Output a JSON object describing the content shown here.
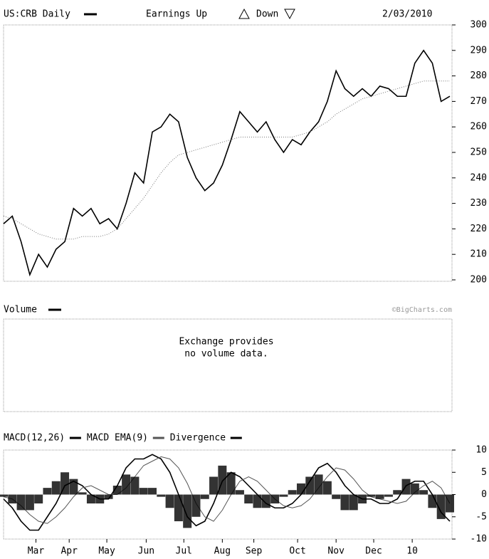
{
  "header": {
    "title": "US:CRB Daily",
    "earnings_up": "Earnings Up",
    "earnings_down": "Down",
    "date": "2/03/2010"
  },
  "volume_panel": {
    "title": "Volume",
    "watermark": "©BigCharts.com",
    "message": [
      "Exchange provides",
      "no volume data."
    ]
  },
  "chart_data": [
    {
      "type": "line",
      "ylim": [
        200,
        300
      ],
      "yticks": [
        200,
        210,
        220,
        230,
        240,
        250,
        260,
        270,
        280,
        290,
        300
      ],
      "xlim": [
        0,
        51
      ],
      "series": [
        {
          "name": "US:CRB Daily",
          "color": "#000000",
          "values": [
            222,
            225,
            215,
            202,
            210,
            205,
            212,
            215,
            228,
            225,
            228,
            222,
            224,
            220,
            230,
            242,
            238,
            258,
            260,
            265,
            262,
            248,
            240,
            235,
            238,
            245,
            255,
            266,
            262,
            258,
            262,
            255,
            250,
            255,
            253,
            258,
            262,
            270,
            282,
            275,
            272,
            275,
            272,
            276,
            275,
            272,
            272,
            285,
            290,
            285,
            270,
            272
          ]
        },
        {
          "color": "#777777",
          "values": [
            225,
            224,
            222,
            220,
            218,
            217,
            216,
            216,
            216,
            217,
            217,
            217,
            218,
            220,
            224,
            228,
            232,
            237,
            242,
            246,
            249,
            250,
            251,
            252,
            253,
            254,
            255,
            256,
            256,
            256,
            256,
            256,
            256,
            256,
            257,
            258,
            260,
            262,
            265,
            267,
            269,
            271,
            272,
            273,
            274,
            275,
            276,
            277,
            278,
            278,
            278,
            278
          ]
        }
      ]
    },
    {
      "type": "macd",
      "title": "MACD(12,26)",
      "ylim": [
        -10,
        10
      ],
      "yticks": [
        10,
        5,
        0,
        -5,
        -10
      ],
      "xlim": [
        0,
        51
      ],
      "xticks": [
        {
          "value": 3.7,
          "label": "Mar"
        },
        {
          "value": 7.5,
          "label": "Apr"
        },
        {
          "value": 11.8,
          "label": "May"
        },
        {
          "value": 16.3,
          "label": "Jun"
        },
        {
          "value": 20.6,
          "label": "Jul"
        },
        {
          "value": 25,
          "label": "Aug"
        },
        {
          "value": 28.6,
          "label": "Sep"
        },
        {
          "value": 33.6,
          "label": "Oct"
        },
        {
          "value": 38,
          "label": "Nov"
        },
        {
          "value": 42.3,
          "label": "Dec"
        },
        {
          "value": 46.7,
          "label": "10"
        }
      ],
      "series": [
        {
          "name": "MACD(12,26)",
          "color": "#000000",
          "values": [
            -1,
            -3,
            -6,
            -8,
            -8,
            -5,
            -2,
            2,
            3,
            2,
            0,
            -1,
            -1,
            2,
            6,
            8,
            8,
            9,
            8,
            5,
            0,
            -5,
            -7,
            -6,
            -2,
            3,
            5,
            4,
            2,
            0,
            -2,
            -3,
            -3,
            -2,
            0,
            3,
            6,
            7,
            5,
            2,
            0,
            -1,
            -1,
            -2,
            -2,
            -1,
            2,
            3,
            3,
            0,
            -4,
            -6
          ]
        },
        {
          "name": "MACD EMA(9)",
          "color": "#555555",
          "values": [
            -0.5,
            -1,
            -2.5,
            -4.5,
            -6,
            -6.5,
            -5,
            -3,
            -0.5,
            1.5,
            2,
            1,
            0,
            0,
            1.5,
            4,
            6.5,
            7.5,
            8.5,
            8,
            6,
            2.5,
            -2,
            -5,
            -6,
            -3.5,
            0,
            3,
            4,
            3,
            1,
            -1,
            -2.5,
            -3,
            -2.5,
            -1,
            1.5,
            4,
            6,
            5.5,
            3.5,
            1,
            -0.5,
            -1,
            -1.5,
            -2,
            -1.5,
            0.5,
            2,
            3,
            1.5,
            -2
          ]
        },
        {
          "name": "Divergence",
          "color": "#000000",
          "bars": true,
          "values": [
            -0.5,
            -2,
            -3.5,
            -3.5,
            -2,
            1.5,
            3,
            5,
            3.5,
            0.5,
            -2,
            -2,
            -1,
            2,
            4.5,
            4,
            1.5,
            1.5,
            -0.5,
            -3,
            -6,
            -7.5,
            -5,
            -1,
            4,
            6.5,
            5,
            1,
            -2,
            -3,
            -3,
            -2,
            -0.5,
            1,
            2.5,
            4,
            4.5,
            3,
            -1,
            -3.5,
            -3.5,
            -2,
            -0.5,
            -1,
            -0.5,
            1,
            3.5,
            2.5,
            1,
            -3,
            -5.5,
            -4
          ]
        }
      ]
    }
  ]
}
